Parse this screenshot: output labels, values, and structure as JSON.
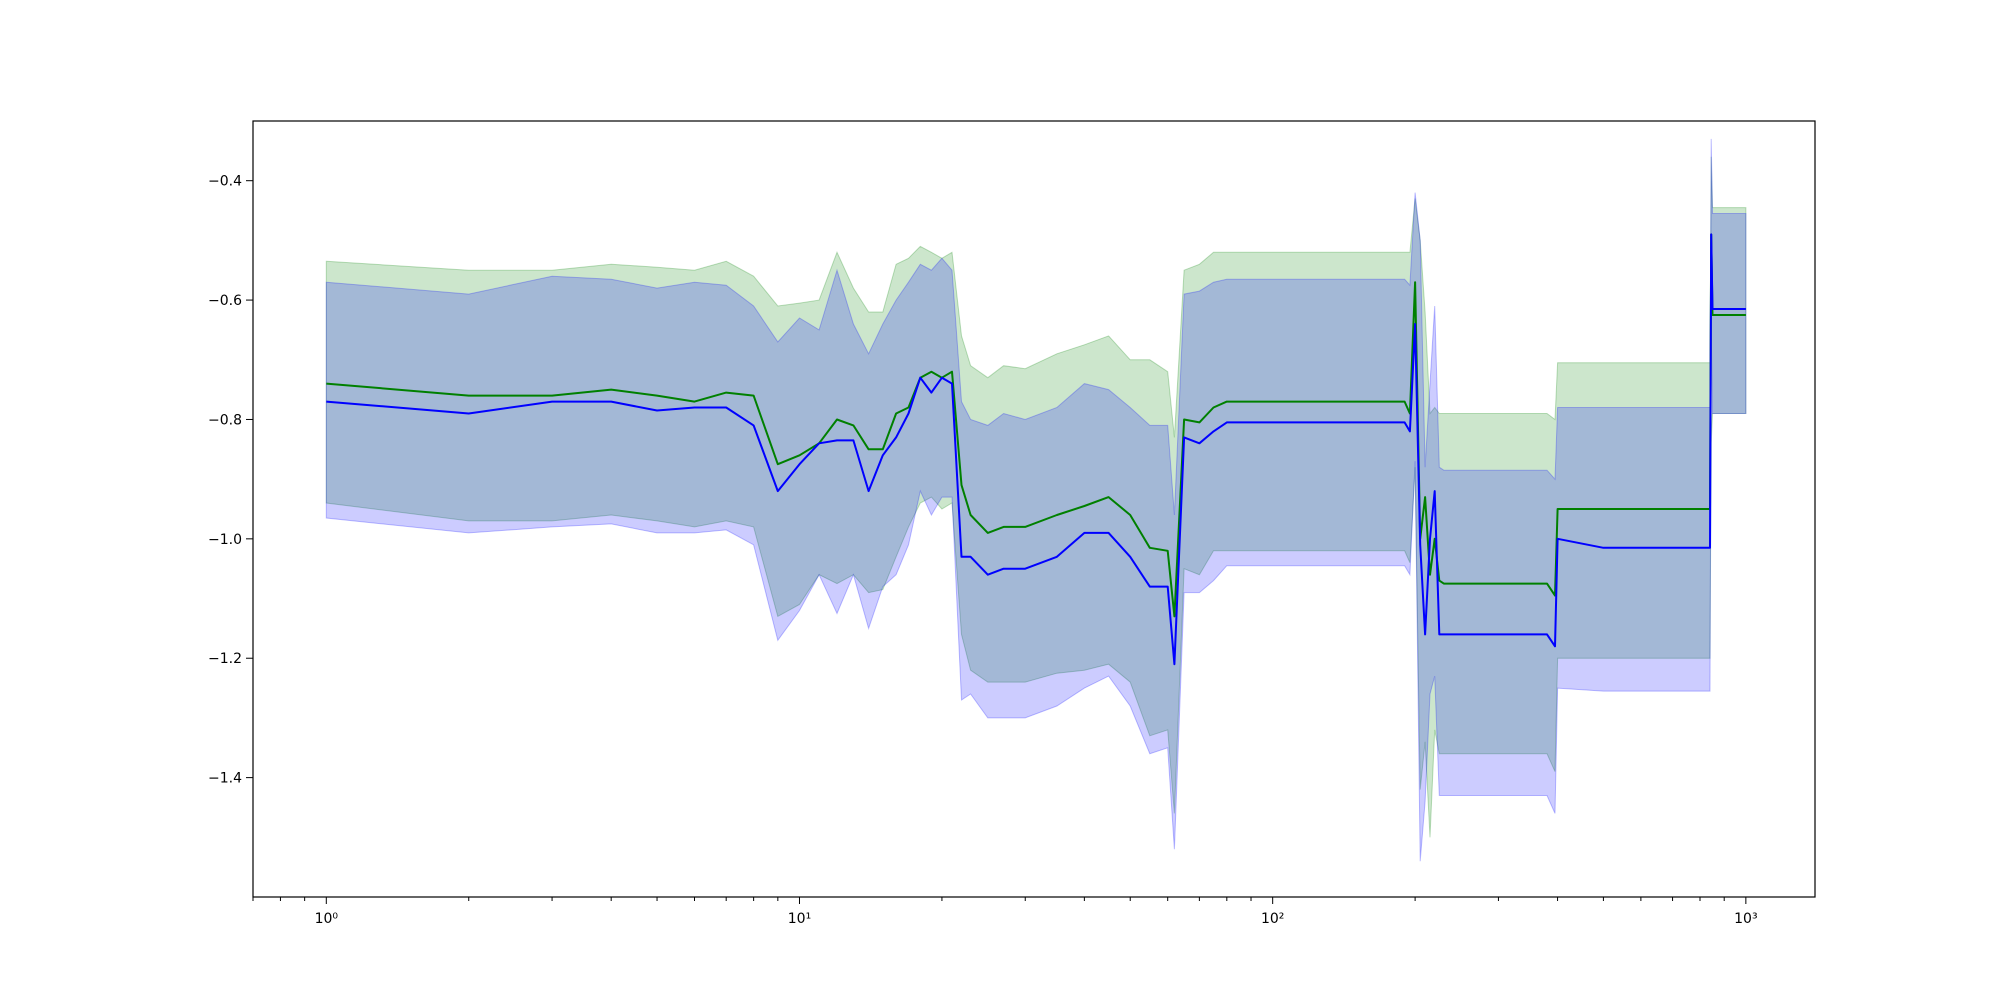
{
  "chart_data": {
    "type": "line",
    "title": "",
    "xlabel": "",
    "ylabel": "",
    "x_scale": "log",
    "xlim": [
      0.7,
      1400
    ],
    "ylim": [
      -1.6,
      -0.3
    ],
    "grid": false,
    "legend": "none",
    "x_ticks": [
      {
        "value": 1,
        "label": "10⁰"
      },
      {
        "value": 10,
        "label": "10¹"
      },
      {
        "value": 100,
        "label": "10²"
      },
      {
        "value": 1000,
        "label": "10³"
      }
    ],
    "y_ticks": [
      {
        "value": -0.4,
        "label": "−0.4"
      },
      {
        "value": -0.6,
        "label": "−0.6"
      },
      {
        "value": -0.8,
        "label": "−0.8"
      },
      {
        "value": -1.0,
        "label": "−1.0"
      },
      {
        "value": -1.2,
        "label": "−1.2"
      },
      {
        "value": -1.4,
        "label": "−1.4"
      }
    ],
    "series": [
      {
        "color": "#008000",
        "band_color": "#008000",
        "band_opacity": 0.2,
        "x": [
          1,
          2,
          3,
          4,
          5,
          6,
          7,
          8,
          9,
          10,
          11,
          12,
          13,
          14,
          15,
          16,
          17,
          18,
          19,
          20,
          21,
          22,
          23,
          25,
          27,
          30,
          35,
          40,
          45,
          50,
          55,
          60,
          62,
          65,
          70,
          75,
          80,
          100,
          150,
          190,
          195,
          200,
          205,
          210,
          215,
          220,
          225,
          230,
          300,
          380,
          395,
          400,
          500,
          700,
          840,
          845,
          850,
          1000
        ],
        "mean": [
          -0.74,
          -0.76,
          -0.76,
          -0.75,
          -0.76,
          -0.77,
          -0.755,
          -0.76,
          -0.875,
          -0.86,
          -0.84,
          -0.8,
          -0.81,
          -0.85,
          -0.85,
          -0.79,
          -0.78,
          -0.73,
          -0.72,
          -0.73,
          -0.72,
          -0.91,
          -0.96,
          -0.99,
          -0.98,
          -0.98,
          -0.96,
          -0.945,
          -0.93,
          -0.96,
          -1.015,
          -1.02,
          -1.13,
          -0.8,
          -0.805,
          -0.78,
          -0.77,
          -0.77,
          -0.77,
          -0.77,
          -0.79,
          -0.57,
          -1.0,
          -0.93,
          -1.06,
          -1.0,
          -1.07,
          -1.075,
          -1.075,
          -1.075,
          -1.095,
          -0.95,
          -0.95,
          -0.95,
          -0.95,
          -0.49,
          -0.625,
          -0.625
        ],
        "upper": [
          -0.535,
          -0.55,
          -0.55,
          -0.54,
          -0.545,
          -0.55,
          -0.535,
          -0.56,
          -0.61,
          -0.605,
          -0.6,
          -0.52,
          -0.58,
          -0.62,
          -0.62,
          -0.54,
          -0.53,
          -0.51,
          -0.52,
          -0.53,
          -0.52,
          -0.66,
          -0.71,
          -0.73,
          -0.71,
          -0.715,
          -0.69,
          -0.675,
          -0.66,
          -0.7,
          -0.7,
          -0.72,
          -0.83,
          -0.55,
          -0.54,
          -0.52,
          -0.52,
          -0.52,
          -0.52,
          -0.52,
          -0.52,
          -0.43,
          -0.5,
          -0.62,
          -0.79,
          -0.78,
          -0.79,
          -0.79,
          -0.79,
          -0.79,
          -0.8,
          -0.705,
          -0.705,
          -0.705,
          -0.705,
          -0.36,
          -0.445,
          -0.445
        ],
        "lower": [
          -0.94,
          -0.97,
          -0.97,
          -0.96,
          -0.97,
          -0.98,
          -0.97,
          -0.98,
          -1.13,
          -1.11,
          -1.06,
          -1.075,
          -1.06,
          -1.09,
          -1.085,
          -1.03,
          -0.98,
          -0.94,
          -0.93,
          -0.95,
          -0.94,
          -1.16,
          -1.22,
          -1.24,
          -1.24,
          -1.24,
          -1.225,
          -1.22,
          -1.21,
          -1.24,
          -1.33,
          -1.32,
          -1.46,
          -1.05,
          -1.06,
          -1.02,
          -1.02,
          -1.02,
          -1.02,
          -1.02,
          -1.04,
          -0.88,
          -1.42,
          -1.34,
          -1.5,
          -1.32,
          -1.36,
          -1.36,
          -1.36,
          -1.36,
          -1.39,
          -1.2,
          -1.2,
          -1.2,
          -1.2,
          -0.84,
          -0.79,
          -0.79
        ]
      },
      {
        "color": "#0000ff",
        "band_color": "#0000ff",
        "band_opacity": 0.2,
        "x": [
          1,
          2,
          3,
          4,
          5,
          6,
          7,
          8,
          9,
          10,
          11,
          12,
          13,
          14,
          15,
          16,
          17,
          18,
          19,
          20,
          21,
          22,
          23,
          25,
          27,
          30,
          35,
          40,
          45,
          50,
          55,
          60,
          62,
          65,
          70,
          75,
          80,
          100,
          150,
          190,
          195,
          200,
          205,
          210,
          215,
          220,
          225,
          230,
          300,
          380,
          395,
          400,
          500,
          700,
          840,
          845,
          850,
          1000
        ],
        "mean": [
          -0.77,
          -0.79,
          -0.77,
          -0.77,
          -0.785,
          -0.78,
          -0.78,
          -0.81,
          -0.92,
          -0.875,
          -0.84,
          -0.835,
          -0.835,
          -0.92,
          -0.86,
          -0.83,
          -0.79,
          -0.73,
          -0.755,
          -0.73,
          -0.74,
          -1.03,
          -1.03,
          -1.06,
          -1.05,
          -1.05,
          -1.03,
          -0.99,
          -0.99,
          -1.03,
          -1.08,
          -1.08,
          -1.21,
          -0.83,
          -0.84,
          -0.82,
          -0.805,
          -0.805,
          -0.805,
          -0.805,
          -0.82,
          -0.64,
          -1.01,
          -1.16,
          -1.0,
          -0.92,
          -1.16,
          -1.16,
          -1.16,
          -1.16,
          -1.18,
          -1.0,
          -1.015,
          -1.015,
          -1.015,
          -0.49,
          -0.615,
          -0.615
        ],
        "upper": [
          -0.57,
          -0.59,
          -0.56,
          -0.565,
          -0.58,
          -0.57,
          -0.575,
          -0.61,
          -0.67,
          -0.63,
          -0.65,
          -0.55,
          -0.64,
          -0.69,
          -0.64,
          -0.6,
          -0.57,
          -0.54,
          -0.55,
          -0.53,
          -0.55,
          -0.77,
          -0.8,
          -0.81,
          -0.79,
          -0.8,
          -0.78,
          -0.74,
          -0.75,
          -0.78,
          -0.81,
          -0.81,
          -0.96,
          -0.59,
          -0.585,
          -0.57,
          -0.565,
          -0.565,
          -0.565,
          -0.565,
          -0.575,
          -0.42,
          -0.5,
          -0.88,
          -0.74,
          -0.61,
          -0.88,
          -0.885,
          -0.885,
          -0.885,
          -0.9,
          -0.78,
          -0.78,
          -0.78,
          -0.78,
          -0.33,
          -0.455,
          -0.455
        ],
        "lower": [
          -0.965,
          -0.99,
          -0.98,
          -0.975,
          -0.99,
          -0.99,
          -0.985,
          -1.01,
          -1.17,
          -1.12,
          -1.06,
          -1.125,
          -1.06,
          -1.15,
          -1.08,
          -1.06,
          -1.01,
          -0.92,
          -0.96,
          -0.93,
          -0.93,
          -1.27,
          -1.26,
          -1.3,
          -1.3,
          -1.3,
          -1.28,
          -1.25,
          -1.23,
          -1.28,
          -1.36,
          -1.35,
          -1.52,
          -1.09,
          -1.09,
          -1.07,
          -1.045,
          -1.045,
          -1.045,
          -1.045,
          -1.06,
          -0.87,
          -1.54,
          -1.44,
          -1.26,
          -1.23,
          -1.43,
          -1.43,
          -1.43,
          -1.43,
          -1.46,
          -1.25,
          -1.255,
          -1.255,
          -1.255,
          -0.65,
          -0.79,
          -0.79
        ]
      }
    ]
  }
}
